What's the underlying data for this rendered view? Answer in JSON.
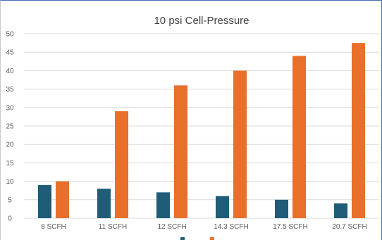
{
  "chart_data": {
    "type": "bar",
    "title": "10 psi Cell-Pressure",
    "categories": [
      "8 SCFH",
      "11 SCFH",
      "12 SCFH",
      "14.3 SCFH",
      "17.5 SCFH",
      "20.7 SCFH"
    ],
    "series": [
      {
        "name": "",
        "color": "#1f5c78",
        "values": [
          9,
          8,
          7,
          6,
          5,
          4
        ]
      },
      {
        "name": "",
        "color": "#e8702a",
        "values": [
          10,
          29,
          36,
          40,
          44,
          47.5
        ]
      }
    ],
    "ylim": [
      0,
      50
    ],
    "yticks": [
      "0",
      "5",
      "10",
      "15",
      "20",
      "25",
      "30",
      "35",
      "40",
      "45",
      "50"
    ],
    "grid": true,
    "legend": "bottom"
  }
}
